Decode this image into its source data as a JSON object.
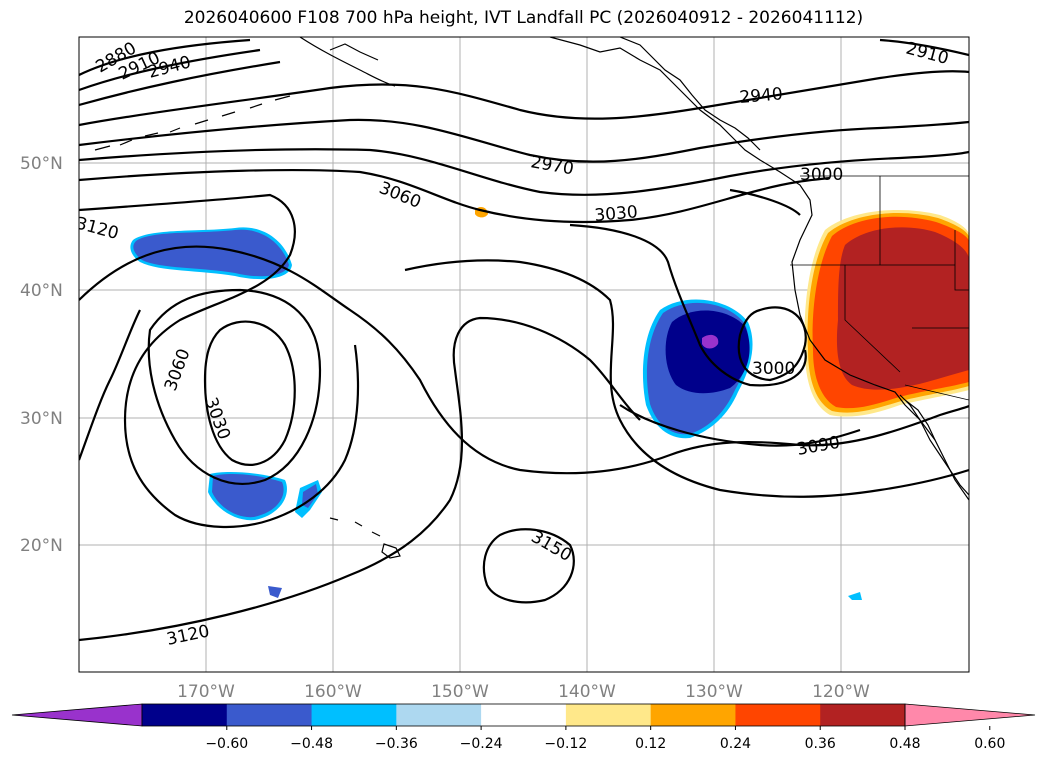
{
  "title": "2026040600 F108 700 hPa height, IVT Landfall PC (2026040912 - 2026041112)",
  "lat_labels": [
    "50°N",
    "40°N",
    "30°N",
    "20°N"
  ],
  "lon_labels": [
    "170°W",
    "160°W",
    "150°W",
    "140°W",
    "130°W",
    "120°W"
  ],
  "contour_labels": [
    "2880",
    "2910",
    "2940",
    "2910",
    "2940",
    "2970",
    "3000",
    "3060",
    "3030",
    "3120",
    "3060",
    "3030",
    "3000",
    "3090",
    "3150",
    "3120"
  ],
  "colorbar": {
    "ticks": [
      "−0.60",
      "−0.48",
      "−0.36",
      "−0.24",
      "−0.12",
      "0.12",
      "0.24",
      "0.36",
      "0.48",
      "0.60"
    ],
    "colors": [
      "#9932cc",
      "#00008b",
      "#3a5acd",
      "#00bfff",
      "#add8f0",
      "#ffffff",
      "#ffe88a",
      "#ffa500",
      "#ff4500",
      "#b22222",
      "#ff88aa"
    ]
  }
}
